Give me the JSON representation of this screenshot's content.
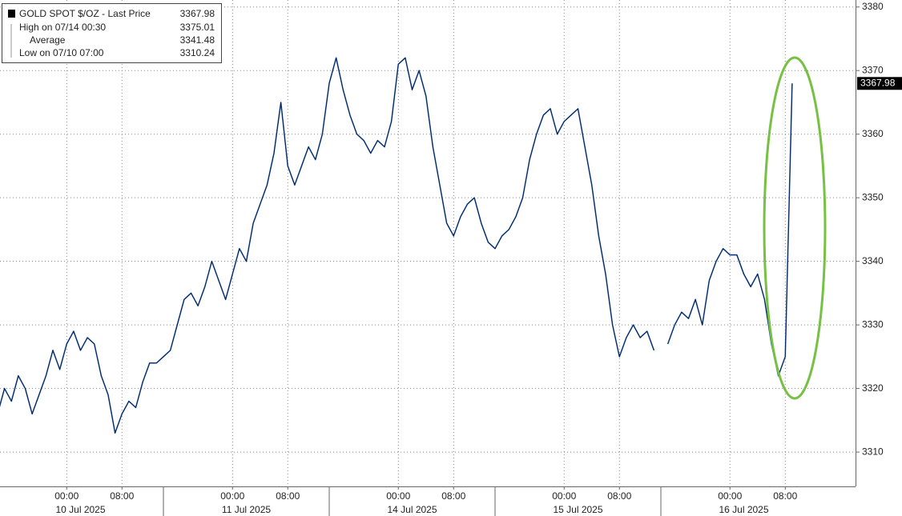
{
  "chart_data": {
    "type": "line",
    "series": [
      {
        "name": "GOLD SPOT $/OZ - Last Price",
        "color": "#1f5fc4",
        "values": [
          3316,
          3320,
          3318,
          3322,
          3320,
          3316,
          3319,
          3322,
          3326,
          3323,
          3327,
          3329,
          3326,
          3328,
          3327,
          3322,
          3319,
          3313,
          3316,
          3318,
          3317,
          3321,
          3324,
          3324,
          3325,
          3326,
          3330,
          3334,
          3335,
          3333,
          3336,
          3340,
          3337,
          3334,
          3338,
          3342,
          3340,
          3346,
          3349,
          3352,
          3357,
          3365,
          3355,
          3352,
          3355,
          3358,
          3356,
          3360,
          3368,
          3372,
          3367,
          3363,
          3360,
          3359,
          3357,
          3359,
          3358,
          3362,
          3371,
          3372,
          3367,
          3370,
          3366,
          3358,
          3352,
          3346,
          3344,
          3347,
          3349,
          3350,
          3346,
          3343,
          3342,
          3344,
          3345,
          3347,
          3350,
          3356,
          3360,
          3363,
          3364,
          3360,
          3362,
          3363,
          3364,
          3358,
          3352,
          3344,
          3338,
          3330,
          3325,
          3328,
          3330,
          3328,
          3329,
          3326,
          null,
          3327,
          3330,
          3332,
          3331,
          3334,
          3330,
          3337,
          3340,
          3342,
          3341,
          3341,
          3338,
          3336,
          3338,
          3334,
          3327,
          3322,
          3325,
          3367.98
        ]
      }
    ],
    "categories": [
      null,
      null,
      null,
      null,
      null,
      null,
      null,
      null,
      null,
      null,
      "00:00",
      null,
      null,
      null,
      null,
      null,
      null,
      null,
      "08:00",
      null,
      null,
      null,
      null,
      null,
      null,
      null,
      null,
      null,
      null,
      null,
      null,
      null,
      null,
      null,
      "00:00",
      null,
      null,
      null,
      null,
      null,
      null,
      null,
      "08:00",
      null,
      null,
      null,
      null,
      null,
      null,
      null,
      null,
      null,
      null,
      null,
      null,
      null,
      null,
      null,
      "00:00",
      null,
      null,
      null,
      null,
      null,
      null,
      null,
      "08:00",
      null,
      null,
      null,
      null,
      null,
      null,
      null,
      null,
      null,
      null,
      null,
      null,
      null,
      null,
      null,
      "00:00",
      null,
      null,
      null,
      null,
      null,
      null,
      null,
      "08:00",
      null,
      null,
      null,
      null,
      null,
      null,
      null,
      null,
      null,
      null,
      null,
      null,
      null,
      null,
      null,
      "00:00",
      null,
      null,
      null,
      null,
      null,
      null,
      null,
      "08:00",
      null
    ],
    "category_groups": [
      "10 Jul 2025",
      "11 Jul 2025",
      "14 Jul 2025",
      "15 Jul 2025",
      "16 Jul 2025"
    ],
    "stats": [
      {
        "label": "High on 07/14 00:30",
        "value": 3375.01
      },
      {
        "label": "Average",
        "value": 3341.48
      },
      {
        "label": "Low on 07/10 07:00",
        "value": 3310.24
      }
    ],
    "ylim": [
      3304.6,
      3381.1
    ],
    "yticks": [
      3310,
      3320,
      3330,
      3340,
      3350,
      3360,
      3370,
      3380
    ],
    "grid": true
  }
}
